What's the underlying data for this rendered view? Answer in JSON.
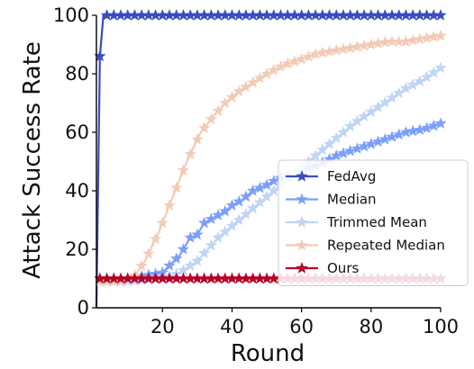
{
  "chart_data": {
    "type": "line",
    "title": "",
    "xlabel": "Round",
    "ylabel": "Attack Success Rate",
    "xlim": [
      1,
      100
    ],
    "ylim": [
      0,
      100
    ],
    "xticks": [
      20,
      40,
      60,
      80,
      100
    ],
    "yticks": [
      0,
      20,
      40,
      60,
      80,
      100
    ],
    "legend_position": "center-right",
    "grid": false,
    "marker": "star",
    "series": [
      {
        "name": "FedAvg",
        "color": "#3b4cc0",
        "points": [
          [
            1,
            0
          ],
          [
            2,
            86
          ],
          [
            3,
            100
          ],
          [
            10,
            100
          ],
          [
            20,
            100
          ],
          [
            40,
            100
          ],
          [
            60,
            100
          ],
          [
            80,
            100
          ],
          [
            100,
            100
          ]
        ]
      },
      {
        "name": "Median",
        "color": "#7b9ff9",
        "points": [
          [
            1,
            9
          ],
          [
            5,
            9
          ],
          [
            10,
            10
          ],
          [
            15,
            11
          ],
          [
            20,
            12
          ],
          [
            25,
            18
          ],
          [
            28,
            24
          ],
          [
            30,
            25
          ],
          [
            32,
            29
          ],
          [
            35,
            31
          ],
          [
            38,
            33
          ],
          [
            40,
            35
          ],
          [
            43,
            37
          ],
          [
            46,
            40
          ],
          [
            50,
            42
          ],
          [
            53,
            44
          ],
          [
            56,
            45
          ],
          [
            60,
            47
          ],
          [
            65,
            49
          ],
          [
            70,
            52
          ],
          [
            75,
            54
          ],
          [
            80,
            56
          ],
          [
            85,
            58
          ],
          [
            90,
            60
          ],
          [
            95,
            61
          ],
          [
            100,
            63
          ]
        ]
      },
      {
        "name": "Trimmed Mean",
        "color": "#c0d4f5",
        "points": [
          [
            1,
            9
          ],
          [
            10,
            9
          ],
          [
            20,
            10
          ],
          [
            25,
            12
          ],
          [
            30,
            16
          ],
          [
            33,
            20
          ],
          [
            36,
            24
          ],
          [
            40,
            28
          ],
          [
            45,
            33
          ],
          [
            50,
            38
          ],
          [
            55,
            43
          ],
          [
            60,
            48
          ],
          [
            65,
            53
          ],
          [
            70,
            58
          ],
          [
            75,
            63
          ],
          [
            80,
            67
          ],
          [
            85,
            71
          ],
          [
            90,
            75
          ],
          [
            95,
            78
          ],
          [
            100,
            82
          ]
        ]
      },
      {
        "name": "Repeated Median",
        "color": "#f2cbb7",
        "points": [
          [
            1,
            9
          ],
          [
            8,
            9
          ],
          [
            12,
            11
          ],
          [
            15,
            16
          ],
          [
            17,
            21
          ],
          [
            19,
            26
          ],
          [
            21,
            32
          ],
          [
            23,
            38
          ],
          [
            25,
            44
          ],
          [
            27,
            50
          ],
          [
            29,
            55
          ],
          [
            31,
            60
          ],
          [
            33,
            63
          ],
          [
            35,
            66
          ],
          [
            38,
            70
          ],
          [
            42,
            74
          ],
          [
            46,
            77
          ],
          [
            50,
            80
          ],
          [
            55,
            83
          ],
          [
            60,
            85
          ],
          [
            65,
            87
          ],
          [
            70,
            88
          ],
          [
            75,
            89
          ],
          [
            80,
            90
          ],
          [
            85,
            91
          ],
          [
            90,
            91
          ],
          [
            95,
            92
          ],
          [
            100,
            93
          ]
        ]
      },
      {
        "name": "Ours",
        "color": "#b40426",
        "points": [
          [
            1,
            10
          ],
          [
            5,
            10
          ],
          [
            10,
            10
          ],
          [
            20,
            10
          ],
          [
            30,
            10
          ],
          [
            40,
            10
          ],
          [
            50,
            10
          ],
          [
            60,
            10
          ],
          [
            70,
            10
          ],
          [
            80,
            10
          ],
          [
            90,
            10
          ],
          [
            100,
            10
          ]
        ]
      }
    ]
  }
}
